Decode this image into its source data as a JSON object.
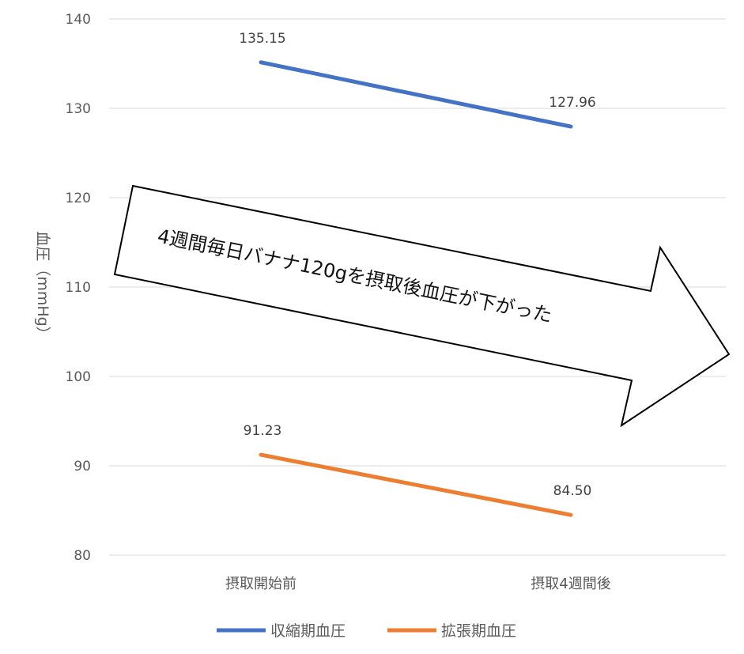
{
  "chart_data": {
    "type": "line",
    "categories": [
      "摂取開始前",
      "摂取4週間後"
    ],
    "series": [
      {
        "name": "収縮期血圧",
        "values": [
          135.15,
          127.96
        ],
        "labels": [
          "135.15",
          "127.96"
        ],
        "color": "#4472C4"
      },
      {
        "name": "拡張期血圧",
        "values": [
          91.23,
          84.5
        ],
        "labels": [
          "91.23",
          "84.50"
        ],
        "color": "#ED7D31"
      }
    ],
    "ylabel": "血圧（mmHg）",
    "ylim": [
      80,
      140
    ],
    "yticks": [
      80,
      90,
      100,
      110,
      120,
      130,
      140
    ],
    "grid": true,
    "legend": "bottom",
    "annotation": "4週間毎日バナナ120gを摂取後血圧が下がった"
  }
}
